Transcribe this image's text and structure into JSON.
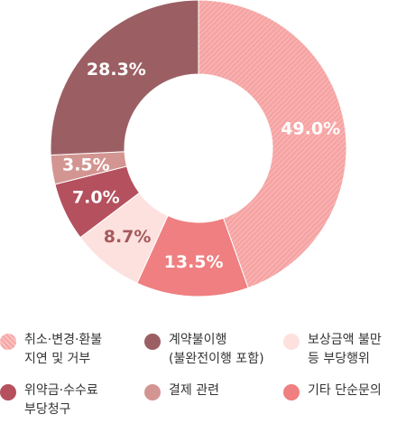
{
  "chart_data": {
    "type": "pie",
    "slices": [
      {
        "name": "취소·변경·환불\n지연 및 거부",
        "value": 49.0,
        "label": "49.0%",
        "color": "#f6a3a3",
        "pattern": "hatch",
        "label_color": "#ffffff"
      },
      {
        "name": "기타 단순문의",
        "value": 13.5,
        "label": "13.5%",
        "color": "#ef7f80",
        "label_color": "#ffffff"
      },
      {
        "name": "보상금액 불만\n등 부당행위",
        "value": 8.7,
        "label": "8.7%",
        "color": "#fde1de",
        "label_color": "#a55a5d"
      },
      {
        "name": "위약금·수수료\n부당청구",
        "value": 7.0,
        "label": "7.0%",
        "color": "#b5505e",
        "label_color": "#ffffff"
      },
      {
        "name": "결제 관련",
        "value": 3.5,
        "label": "3.5%",
        "color": "#d39591",
        "label_color": "#ffffff"
      },
      {
        "name": "계약불이행\n(불완전이행 포함)",
        "value": 28.3,
        "label": "28.3%",
        "color": "#9b5f63",
        "label_color": "#ffffff"
      }
    ],
    "legend_order": [
      0,
      5,
      2,
      3,
      4,
      1
    ]
  }
}
